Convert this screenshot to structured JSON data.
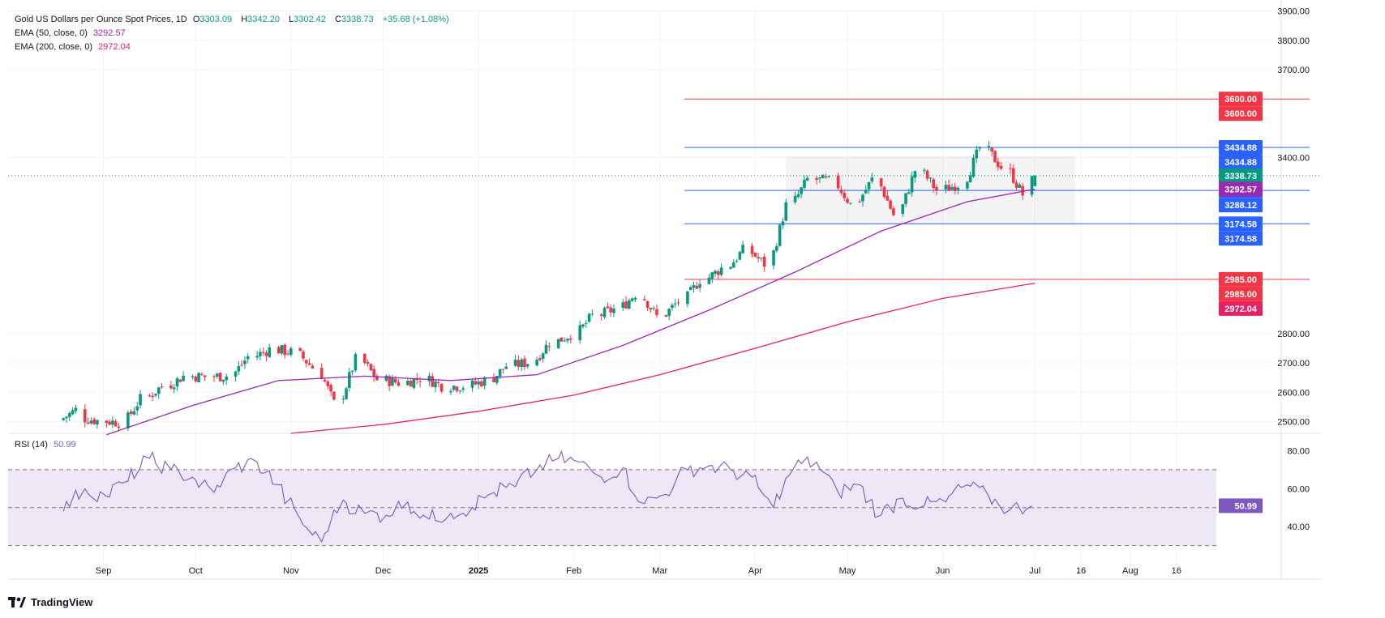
{
  "header": {
    "symbol": "Gold US Dollars per Ounce Spot Prices, 1D",
    "o_label": "O",
    "o": "3303.09",
    "h_label": "H",
    "h": "3342.20",
    "l_label": "L",
    "l": "3302.42",
    "c_label": "C",
    "c": "3338.73",
    "change": "+35.68 (+1.08%)"
  },
  "indicators": {
    "ema50": {
      "label": "EMA (50, close, 0)",
      "value": "3292.57"
    },
    "ema200": {
      "label": "EMA (200, close, 0)",
      "value": "2972.04"
    },
    "rsi": {
      "label": "RSI (14)",
      "value": "50.99"
    }
  },
  "brand": {
    "name": "TradingView"
  },
  "colors": {
    "up": "#089981",
    "down": "#f23645",
    "ema50": "#9c27b0",
    "ema200": "#e91e63",
    "level_blue": "#2962ff",
    "level_red": "#f23645",
    "rsi": "#7e57c2",
    "rsi_band": "#ede7f6"
  },
  "chart_data": [
    {
      "type": "candlestick",
      "title": "Gold US Dollars per Ounce Spot Prices, 1D",
      "x_tick_labels": [
        "Sep",
        "Oct",
        "Nov",
        "Dec",
        "2025",
        "Feb",
        "Mar",
        "Apr",
        "May",
        "Jun",
        "Jul",
        "16",
        "Aug",
        "16"
      ],
      "y_ticks": [
        2500,
        2600,
        2700,
        2800,
        3400,
        3700,
        3800,
        3900
      ],
      "ylim": [
        2460,
        3910
      ],
      "last_price": 3338.73,
      "ohlc_last": {
        "open": 3303.09,
        "high": 3342.2,
        "low": 3302.42,
        "close": 3338.73
      },
      "horizontal_levels": [
        {
          "value": 3600.0,
          "color": "red",
          "labels": [
            "3600.00",
            "3600.00"
          ]
        },
        {
          "value": 3434.88,
          "color": "blue",
          "labels": [
            "3434.88",
            "3434.88"
          ]
        },
        {
          "value": 3288.12,
          "color": "blue",
          "labels": [
            "3288.12",
            "3288.12"
          ]
        },
        {
          "value": 3174.58,
          "color": "blue",
          "labels": [
            "3174.58",
            "3174.58"
          ]
        },
        {
          "value": 2985.0,
          "color": "red",
          "labels": [
            "2985.00",
            "2985.00"
          ]
        }
      ],
      "axis_badges": [
        {
          "value": 3338.73,
          "text": "3338.73",
          "kind": "price"
        },
        {
          "value": 3292.57,
          "text": "3292.57",
          "kind": "ema50"
        },
        {
          "value": 2972.04,
          "text": "2972.04",
          "kind": "ema200"
        }
      ],
      "range_box": {
        "from_date": "2025-04-11",
        "to_date": "2025-07-14",
        "y_low": 3174.58,
        "y_high": 3405
      },
      "candles_approx_weekly": [
        [
          "2024-08-19",
          2505,
          2540
        ],
        [
          "2024-08-26",
          2512,
          2503
        ],
        [
          "2024-09-02",
          2503,
          2497
        ],
        [
          "2024-09-09",
          2497,
          2577
        ],
        [
          "2024-09-16",
          2578,
          2622
        ],
        [
          "2024-09-23",
          2622,
          2655
        ],
        [
          "2024-09-30",
          2656,
          2653
        ],
        [
          "2024-10-07",
          2653,
          2656
        ],
        [
          "2024-10-14",
          2657,
          2721
        ],
        [
          "2024-10-21",
          2721,
          2747
        ],
        [
          "2024-10-28",
          2746,
          2737
        ],
        [
          "2024-11-04",
          2736,
          2685
        ],
        [
          "2024-11-11",
          2684,
          2563
        ],
        [
          "2024-11-18",
          2563,
          2712
        ],
        [
          "2024-11-25",
          2712,
          2643
        ],
        [
          "2024-12-02",
          2643,
          2633
        ],
        [
          "2024-12-09",
          2633,
          2648
        ],
        [
          "2024-12-16",
          2648,
          2622
        ],
        [
          "2024-12-23",
          2622,
          2621
        ],
        [
          "2024-12-30",
          2621,
          2640
        ],
        [
          "2025-01-06",
          2640,
          2690
        ],
        [
          "2025-01-13",
          2690,
          2702
        ],
        [
          "2025-01-20",
          2703,
          2770
        ],
        [
          "2025-01-27",
          2770,
          2798
        ],
        [
          "2025-02-03",
          2798,
          2861
        ],
        [
          "2025-02-10",
          2861,
          2883
        ],
        [
          "2025-02-17",
          2883,
          2936
        ],
        [
          "2025-02-24",
          2936,
          2858
        ],
        [
          "2025-03-03",
          2858,
          2910
        ],
        [
          "2025-03-10",
          2910,
          2984
        ],
        [
          "2025-03-17",
          2984,
          3023
        ],
        [
          "2025-03-24",
          3023,
          3084
        ],
        [
          "2025-03-31",
          3084,
          3037
        ],
        [
          "2025-04-07",
          3037,
          3237
        ],
        [
          "2025-04-14",
          3237,
          3326
        ],
        [
          "2025-04-21",
          3326,
          3320
        ],
        [
          "2025-04-28",
          3320,
          3241
        ],
        [
          "2025-05-05",
          3241,
          3325
        ],
        [
          "2025-05-12",
          3325,
          3205
        ],
        [
          "2025-05-19",
          3205,
          3357
        ],
        [
          "2025-05-26",
          3357,
          3289
        ],
        [
          "2025-06-02",
          3289,
          3310
        ],
        [
          "2025-06-09",
          3310,
          3433
        ],
        [
          "2025-06-16",
          3433,
          3368
        ],
        [
          "2025-06-23",
          3368,
          3274
        ],
        [
          "2025-06-30",
          3303,
          3338.73
        ]
      ],
      "series": [
        {
          "name": "EMA (50, close, 0)",
          "points_approx": [
            [
              "2024-09-02",
              2455
            ],
            [
              "2024-09-30",
              2555
            ],
            [
              "2024-10-28",
              2640
            ],
            [
              "2024-11-25",
              2655
            ],
            [
              "2024-12-23",
              2640
            ],
            [
              "2025-01-20",
              2660
            ],
            [
              "2025-02-17",
              2760
            ],
            [
              "2025-03-17",
              2880
            ],
            [
              "2025-04-14",
              3010
            ],
            [
              "2025-05-12",
              3150
            ],
            [
              "2025-06-09",
              3250
            ],
            [
              "2025-07-01",
              3292.57
            ]
          ]
        },
        {
          "name": "EMA (200, close, 0)",
          "points_approx": [
            [
              "2024-11-01",
              2460
            ],
            [
              "2024-12-01",
              2490
            ],
            [
              "2025-01-01",
              2535
            ],
            [
              "2025-02-01",
              2590
            ],
            [
              "2025-03-01",
              2660
            ],
            [
              "2025-04-01",
              2750
            ],
            [
              "2025-05-01",
              2840
            ],
            [
              "2025-06-01",
              2920
            ],
            [
              "2025-07-01",
              2972.04
            ]
          ]
        }
      ]
    },
    {
      "type": "line",
      "title": "RSI (14)",
      "y_ticks": [
        40.0,
        60.0,
        80.0
      ],
      "ylim": [
        23,
        87
      ],
      "band": [
        30,
        70
      ],
      "midline": 50,
      "last_value": 50.99,
      "series": [
        {
          "name": "RSI (14)",
          "points_approx": [
            [
              "2024-08-19",
              48
            ],
            [
              "2024-08-26",
              60
            ],
            [
              "2024-09-02",
              56
            ],
            [
              "2024-09-09",
              64
            ],
            [
              "2024-09-16",
              76
            ],
            [
              "2024-09-23",
              70
            ],
            [
              "2024-09-30",
              66
            ],
            [
              "2024-10-07",
              58
            ],
            [
              "2024-10-14",
              71
            ],
            [
              "2024-10-21",
              74
            ],
            [
              "2024-10-28",
              62
            ],
            [
              "2024-11-04",
              44
            ],
            [
              "2024-11-11",
              32
            ],
            [
              "2024-11-18",
              54
            ],
            [
              "2024-11-25",
              47
            ],
            [
              "2024-12-02",
              46
            ],
            [
              "2024-12-09",
              53
            ],
            [
              "2024-12-16",
              44
            ],
            [
              "2024-12-23",
              47
            ],
            [
              "2024-12-30",
              50
            ],
            [
              "2025-01-06",
              58
            ],
            [
              "2025-01-13",
              61
            ],
            [
              "2025-01-20",
              70
            ],
            [
              "2025-01-27",
              76
            ],
            [
              "2025-02-03",
              74
            ],
            [
              "2025-02-10",
              66
            ],
            [
              "2025-02-17",
              71
            ],
            [
              "2025-02-24",
              52
            ],
            [
              "2025-03-03",
              57
            ],
            [
              "2025-03-10",
              70
            ],
            [
              "2025-03-17",
              72
            ],
            [
              "2025-03-24",
              70
            ],
            [
              "2025-03-31",
              66
            ],
            [
              "2025-04-07",
              50
            ],
            [
              "2025-04-14",
              72
            ],
            [
              "2025-04-21",
              74
            ],
            [
              "2025-04-28",
              58
            ],
            [
              "2025-05-05",
              62
            ],
            [
              "2025-05-12",
              46
            ],
            [
              "2025-05-19",
              55
            ],
            [
              "2025-05-26",
              51
            ],
            [
              "2025-06-02",
              53
            ],
            [
              "2025-06-09",
              62
            ],
            [
              "2025-06-16",
              56
            ],
            [
              "2025-06-23",
              49
            ],
            [
              "2025-06-30",
              50.99
            ]
          ]
        }
      ]
    }
  ]
}
